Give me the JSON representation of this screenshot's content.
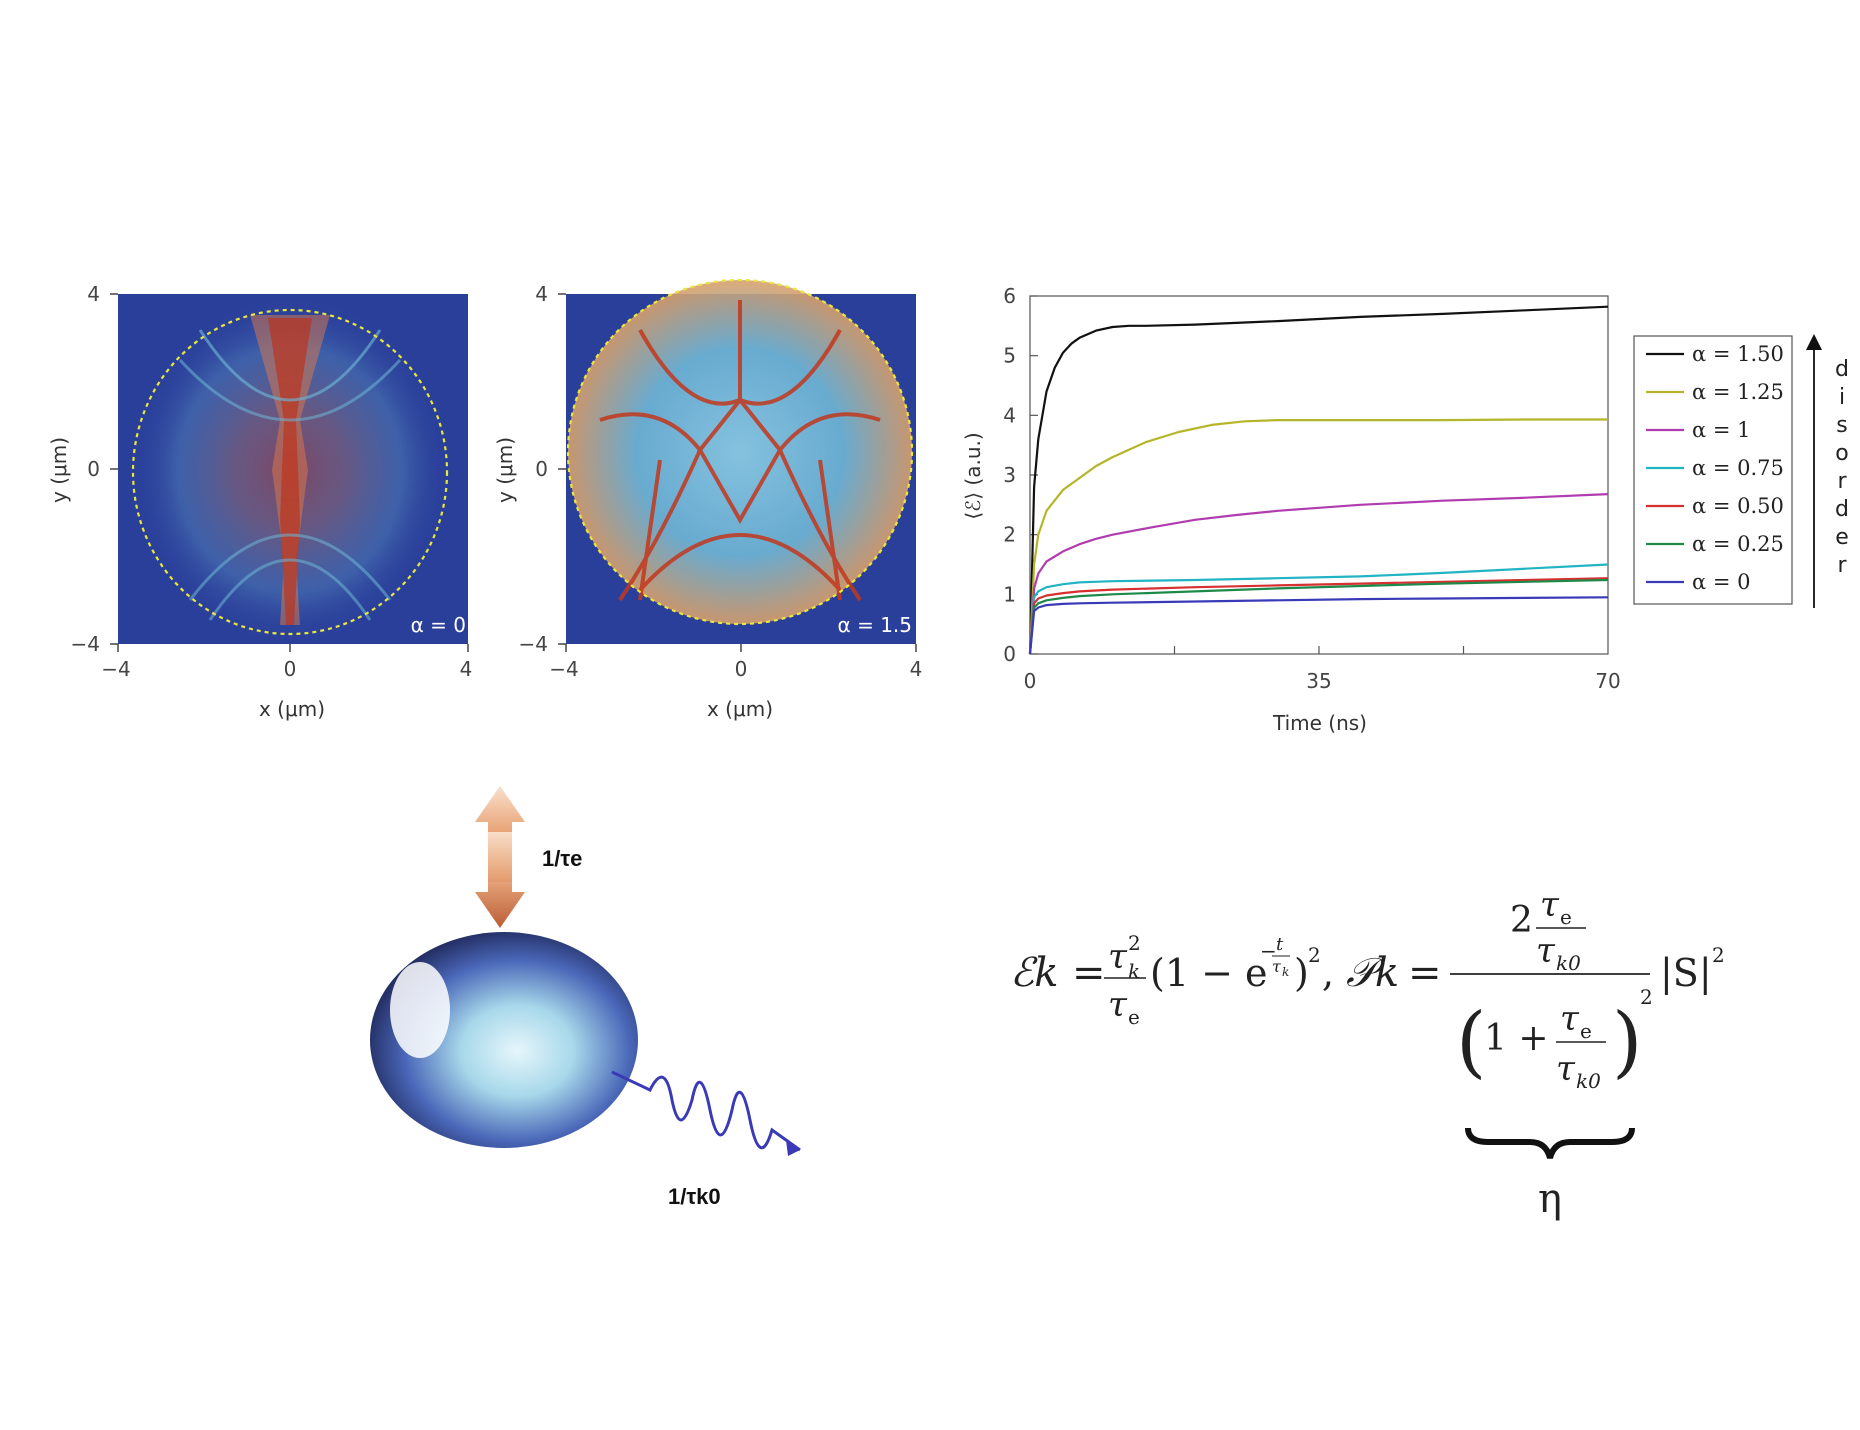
{
  "heatmaps": [
    {
      "id": "panel-a0",
      "alpha_label": "α = 0",
      "xlabel": "x (μm)",
      "ylabel": "y (μm)",
      "xticks": [
        "−4",
        "0",
        "4"
      ],
      "yticks": [
        "4",
        "0",
        "−4"
      ]
    },
    {
      "id": "panel-a15",
      "alpha_label": "α = 1.5",
      "xlabel": "x (μm)",
      "ylabel": "y (μm)",
      "xticks": [
        "−4",
        "0",
        "4"
      ],
      "yticks": [
        "4",
        "0",
        "−4"
      ]
    }
  ],
  "colors": {
    "heat_background": "#2a3f9a",
    "heat_hot": "#c2381e",
    "heat_mid": "#6fb7d6",
    "cavity_outline": "#e8e83a"
  },
  "chart_data": {
    "type": "line",
    "xlabel": "Time (ns)",
    "ylabel": "⟨ℰ⟩ (a.u.)",
    "xlim": [
      0,
      70
    ],
    "ylim": [
      0,
      6
    ],
    "xticks": [
      "0",
      "35",
      "70"
    ],
    "yticks": [
      "0",
      "1",
      "2",
      "3",
      "4",
      "5",
      "6"
    ],
    "legend_position": "right",
    "disorder_label": "disorder",
    "series": [
      {
        "name": "α = 1.50",
        "color": "#111111",
        "x": [
          0,
          0.5,
          1,
          2,
          3,
          4,
          5,
          6,
          8,
          10,
          12,
          14,
          20,
          30,
          40,
          50,
          60,
          70
        ],
        "values": [
          0,
          2.8,
          3.6,
          4.4,
          4.8,
          5.05,
          5.2,
          5.3,
          5.42,
          5.48,
          5.5,
          5.5,
          5.52,
          5.58,
          5.65,
          5.7,
          5.76,
          5.82
        ]
      },
      {
        "name": "α = 1.25",
        "color": "#b5b52a",
        "x": [
          0,
          0.5,
          1,
          2,
          4,
          6,
          8,
          10,
          14,
          18,
          22,
          26,
          30,
          35,
          40,
          50,
          60,
          70
        ],
        "values": [
          0,
          1.5,
          2.0,
          2.4,
          2.75,
          2.95,
          3.15,
          3.3,
          3.55,
          3.72,
          3.84,
          3.9,
          3.92,
          3.92,
          3.92,
          3.92,
          3.93,
          3.93
        ]
      },
      {
        "name": "α = 1",
        "color": "#b03cb0",
        "x": [
          0,
          0.5,
          1,
          2,
          4,
          6,
          8,
          10,
          15,
          20,
          25,
          30,
          35,
          40,
          50,
          60,
          70
        ],
        "values": [
          0,
          1.1,
          1.35,
          1.55,
          1.72,
          1.84,
          1.93,
          2.0,
          2.13,
          2.25,
          2.33,
          2.4,
          2.45,
          2.5,
          2.57,
          2.62,
          2.68
        ]
      },
      {
        "name": "α = 0.75",
        "color": "#20b4c4",
        "x": [
          0,
          0.5,
          1,
          2,
          4,
          6,
          10,
          20,
          30,
          40,
          50,
          60,
          70
        ],
        "values": [
          0,
          0.95,
          1.05,
          1.12,
          1.17,
          1.2,
          1.22,
          1.24,
          1.27,
          1.3,
          1.36,
          1.43,
          1.5
        ]
      },
      {
        "name": "α = 0.50",
        "color": "#d63030",
        "x": [
          0,
          0.5,
          1,
          2,
          4,
          6,
          10,
          20,
          30,
          40,
          50,
          60,
          70
        ],
        "values": [
          0,
          0.85,
          0.93,
          0.98,
          1.02,
          1.05,
          1.08,
          1.12,
          1.15,
          1.18,
          1.21,
          1.24,
          1.27
        ]
      },
      {
        "name": "α = 0.25",
        "color": "#1e8a4a",
        "x": [
          0,
          0.5,
          1,
          2,
          4,
          6,
          10,
          20,
          30,
          40,
          50,
          60,
          70
        ],
        "values": [
          0,
          0.78,
          0.85,
          0.9,
          0.94,
          0.97,
          1.0,
          1.05,
          1.1,
          1.14,
          1.18,
          1.21,
          1.24
        ]
      },
      {
        "name": "α = 0",
        "color": "#3a3ab8",
        "x": [
          0,
          0.5,
          1,
          2,
          4,
          6,
          10,
          20,
          30,
          40,
          50,
          60,
          70
        ],
        "values": [
          0,
          0.72,
          0.78,
          0.82,
          0.84,
          0.85,
          0.86,
          0.88,
          0.9,
          0.92,
          0.93,
          0.94,
          0.95
        ]
      }
    ]
  },
  "diagram": {
    "rate_e": "1/τe",
    "rate_k0": "1/τk0"
  },
  "equation": {
    "lhs_E": "ℰk",
    "lhs_P": "𝒫k",
    "eta": "η"
  }
}
